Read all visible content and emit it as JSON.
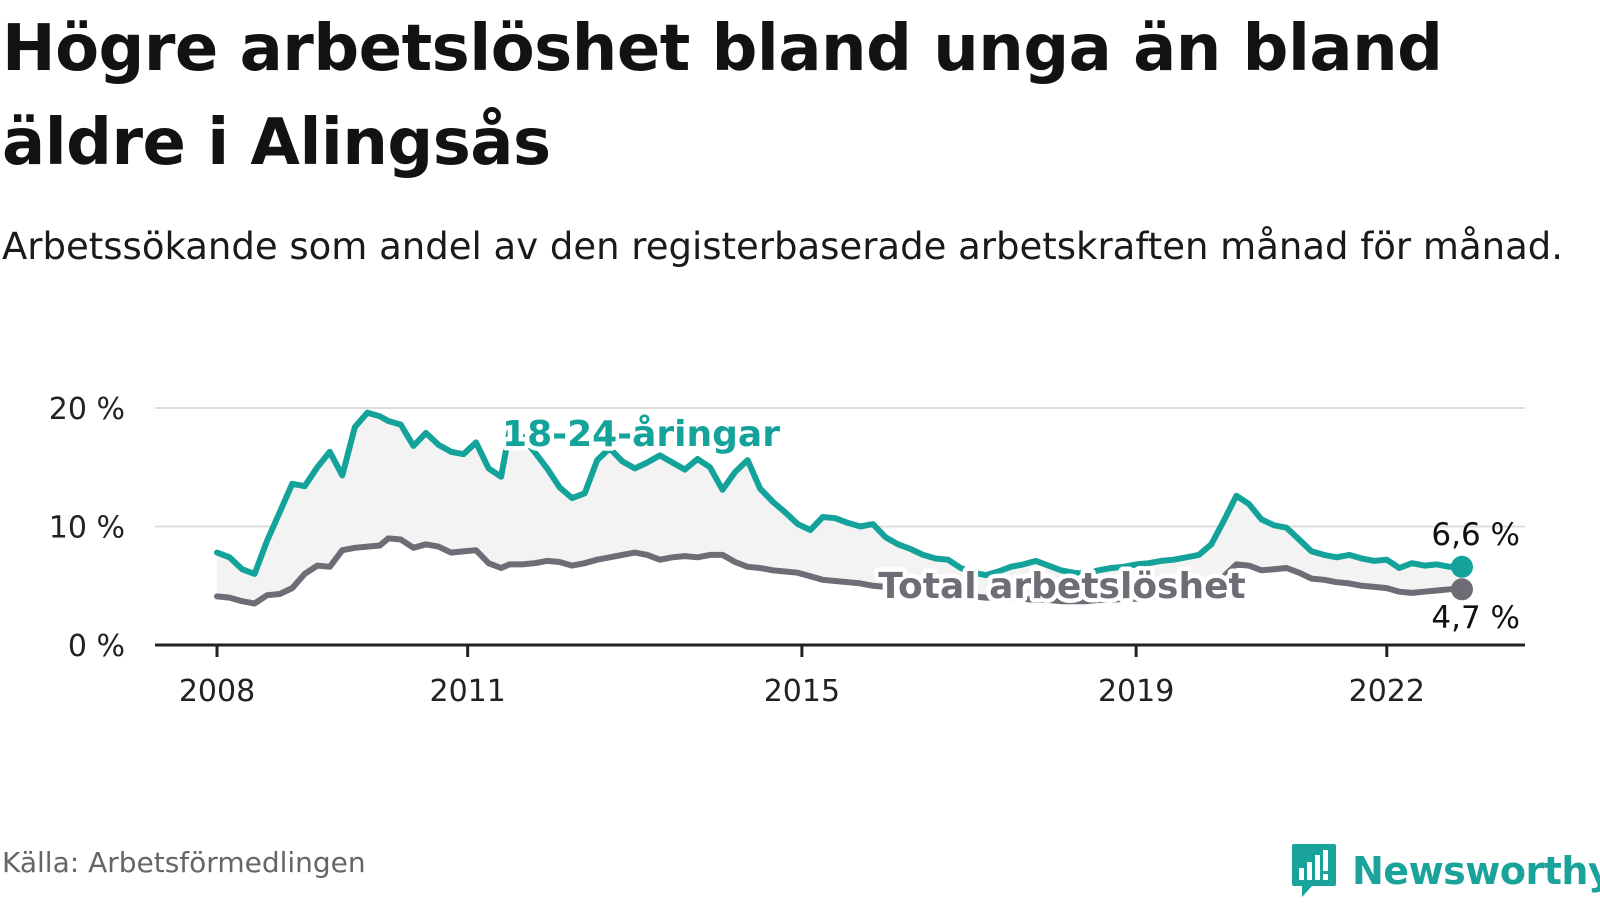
{
  "title": "Högre arbetslöshet bland unga än bland äldre i Alingsås",
  "subtitle": "Arbetssökande som andel av den registerbaserade arbetskraften månad för månad.",
  "source": "Källa: Arbetsförmedlingen",
  "brand": {
    "name": "Newsworthy",
    "icon": "newsworthy-chat-chart-icon"
  },
  "colors": {
    "youth": "#13a39a",
    "total": "#6e6c74",
    "band": "#f3f3f3",
    "grid": "#dddddd",
    "axis": "#222222",
    "brand": "#1aa39a"
  },
  "chart_data": {
    "type": "line",
    "title": "Högre arbetslöshet bland unga än bland äldre i Alingsås",
    "xlabel": "",
    "ylabel": "",
    "ylim": [
      0,
      20
    ],
    "xlim": [
      2008.0,
      2023.0
    ],
    "y_ticks": [
      0,
      10,
      20
    ],
    "y_tick_labels": [
      "0 %",
      "10 %",
      "20 %"
    ],
    "x_ticks": [
      2008,
      2011,
      2015,
      2019,
      2022
    ],
    "x_tick_labels": [
      "2008",
      "2011",
      "2015",
      "2019",
      "2022"
    ],
    "grid": true,
    "fill_between_series": true,
    "series": [
      {
        "name": "18-24-åringar",
        "label": "18-24-åringar",
        "end_label": "6,6 %",
        "end_value": 6.6,
        "x": [
          2008.0,
          2008.15,
          2008.3,
          2008.45,
          2008.6,
          2008.75,
          2008.9,
          2009.05,
          2009.2,
          2009.35,
          2009.5,
          2009.65,
          2009.8,
          2009.95,
          2010.05,
          2010.2,
          2010.35,
          2010.5,
          2010.65,
          2010.8,
          2010.95,
          2011.1,
          2011.25,
          2011.4,
          2011.5,
          2011.65,
          2011.8,
          2011.95,
          2012.1,
          2012.25,
          2012.4,
          2012.55,
          2012.7,
          2012.85,
          2013.0,
          2013.15,
          2013.3,
          2013.45,
          2013.6,
          2013.75,
          2013.9,
          2014.05,
          2014.2,
          2014.35,
          2014.5,
          2014.65,
          2014.8,
          2014.95,
          2015.1,
          2015.25,
          2015.4,
          2015.55,
          2015.7,
          2015.85,
          2016.0,
          2016.15,
          2016.3,
          2016.45,
          2016.6,
          2016.75,
          2016.9,
          2017.05,
          2017.2,
          2017.35,
          2017.5,
          2017.65,
          2017.8,
          2017.95,
          2018.1,
          2018.25,
          2018.4,
          2018.55,
          2018.7,
          2018.85,
          2019.0,
          2019.15,
          2019.3,
          2019.45,
          2019.6,
          2019.75,
          2019.9,
          2020.05,
          2020.2,
          2020.35,
          2020.5,
          2020.65,
          2020.8,
          2020.95,
          2021.1,
          2021.25,
          2021.4,
          2021.55,
          2021.7,
          2021.85,
          2022.0,
          2022.15,
          2022.3,
          2022.45,
          2022.6,
          2022.75,
          2022.9
        ],
        "values": [
          7.8,
          7.4,
          6.4,
          6.0,
          8.8,
          11.2,
          13.6,
          13.4,
          15.0,
          16.3,
          14.3,
          18.4,
          19.6,
          19.3,
          18.9,
          18.6,
          16.8,
          17.9,
          16.9,
          16.3,
          16.1,
          17.1,
          14.9,
          14.2,
          18.0,
          17.6,
          16.3,
          14.9,
          13.3,
          12.4,
          12.8,
          15.6,
          16.6,
          15.5,
          14.9,
          15.4,
          16.0,
          15.4,
          14.8,
          15.7,
          15.0,
          13.1,
          14.6,
          15.6,
          13.2,
          12.1,
          11.2,
          10.2,
          9.7,
          10.8,
          10.7,
          10.3,
          10.0,
          10.2,
          9.1,
          8.5,
          8.1,
          7.6,
          7.3,
          7.2,
          6.5,
          6.1,
          5.9,
          6.2,
          6.6,
          6.8,
          7.1,
          6.7,
          6.3,
          6.1,
          6.0,
          6.3,
          6.5,
          6.6,
          6.8,
          6.9,
          7.1,
          7.2,
          7.4,
          7.6,
          8.5,
          10.5,
          12.6,
          11.9,
          10.6,
          10.1,
          9.9,
          8.9,
          7.9,
          7.6,
          7.4,
          7.6,
          7.3,
          7.1,
          7.2,
          6.5,
          6.9,
          6.7,
          6.8,
          6.6,
          6.6
        ]
      },
      {
        "name": "Total arbetslöshet",
        "label": "Total arbetslöshet",
        "end_label": "4,7 %",
        "end_value": 4.7,
        "x": [
          2008.0,
          2008.15,
          2008.3,
          2008.45,
          2008.6,
          2008.75,
          2008.9,
          2009.05,
          2009.2,
          2009.35,
          2009.5,
          2009.65,
          2009.8,
          2009.95,
          2010.05,
          2010.2,
          2010.35,
          2010.5,
          2010.65,
          2010.8,
          2010.95,
          2011.1,
          2011.25,
          2011.4,
          2011.5,
          2011.65,
          2011.8,
          2011.95,
          2012.1,
          2012.25,
          2012.4,
          2012.55,
          2012.7,
          2012.85,
          2013.0,
          2013.15,
          2013.3,
          2013.45,
          2013.6,
          2013.75,
          2013.9,
          2014.05,
          2014.2,
          2014.35,
          2014.5,
          2014.65,
          2014.8,
          2014.95,
          2015.1,
          2015.25,
          2015.4,
          2015.55,
          2015.7,
          2015.85,
          2016.0,
          2016.15,
          2016.3,
          2016.45,
          2016.6,
          2016.75,
          2016.9,
          2017.05,
          2017.2,
          2017.35,
          2017.5,
          2017.65,
          2017.8,
          2017.95,
          2018.1,
          2018.25,
          2018.4,
          2018.55,
          2018.7,
          2018.85,
          2019.0,
          2019.15,
          2019.3,
          2019.45,
          2019.6,
          2019.75,
          2019.9,
          2020.05,
          2020.2,
          2020.35,
          2020.5,
          2020.65,
          2020.8,
          2020.95,
          2021.1,
          2021.25,
          2021.4,
          2021.55,
          2021.7,
          2021.85,
          2022.0,
          2022.15,
          2022.3,
          2022.45,
          2022.6,
          2022.75,
          2022.9
        ],
        "values": [
          4.1,
          4.0,
          3.7,
          3.5,
          4.2,
          4.3,
          4.8,
          6.0,
          6.7,
          6.6,
          8.0,
          8.2,
          8.3,
          8.4,
          9.0,
          8.9,
          8.2,
          8.5,
          8.3,
          7.8,
          7.9,
          8.0,
          6.9,
          6.5,
          6.8,
          6.8,
          6.9,
          7.1,
          7.0,
          6.7,
          6.9,
          7.2,
          7.4,
          7.6,
          7.8,
          7.6,
          7.2,
          7.4,
          7.5,
          7.4,
          7.6,
          7.6,
          7.0,
          6.6,
          6.5,
          6.3,
          6.2,
          6.1,
          5.8,
          5.5,
          5.4,
          5.3,
          5.2,
          5.0,
          4.9,
          4.8,
          4.7,
          4.5,
          4.4,
          4.3,
          4.2,
          4.1,
          4.0,
          4.0,
          3.9,
          3.9,
          3.8,
          3.8,
          3.7,
          3.7,
          3.7,
          3.8,
          3.8,
          3.9,
          3.9,
          4.0,
          4.1,
          4.2,
          4.4,
          4.6,
          5.0,
          5.8,
          6.8,
          6.7,
          6.3,
          6.4,
          6.5,
          6.1,
          5.6,
          5.5,
          5.3,
          5.2,
          5.0,
          4.9,
          4.8,
          4.5,
          4.4,
          4.5,
          4.6,
          4.7,
          4.7
        ]
      }
    ]
  }
}
